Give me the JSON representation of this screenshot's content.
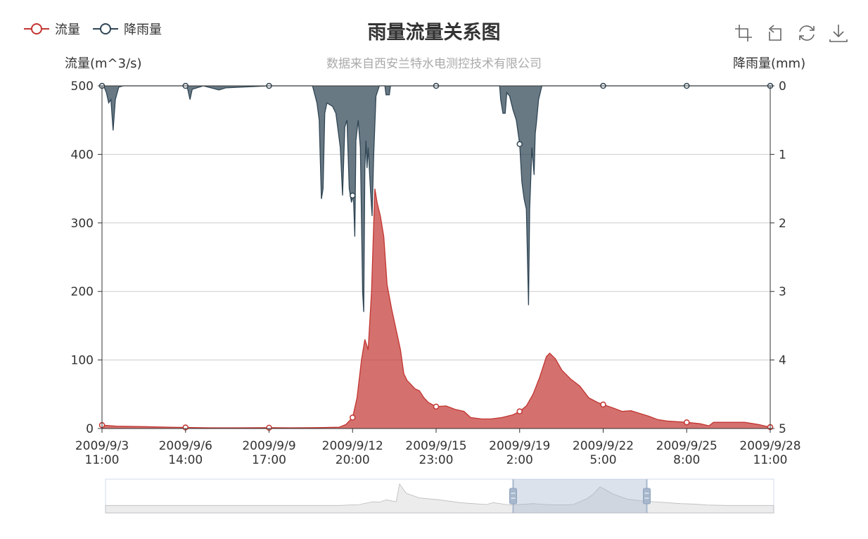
{
  "legend": [
    {
      "name": "流量",
      "color": "#c23531"
    },
    {
      "name": "降雨量",
      "color": "#2f4554"
    }
  ],
  "toolbox": [
    {
      "name": "area-zoom-icon"
    },
    {
      "name": "zoom-reset-icon"
    },
    {
      "name": "restore-icon"
    },
    {
      "name": "save-image-icon"
    }
  ],
  "chart_data": {
    "type": "area",
    "title": "雨量流量关系图",
    "subtitle": "数据来自西安兰特水电测控技术有限公司",
    "y_left": {
      "name": "流量(m^3/s)",
      "min": 0,
      "max": 500,
      "ticks": [
        0,
        100,
        200,
        300,
        400,
        500
      ]
    },
    "y_right": {
      "name": "降雨量(mm)",
      "min": 0,
      "max": 5,
      "inverse": true,
      "ticks": [
        0,
        1,
        2,
        3,
        4,
        5
      ]
    },
    "x": {
      "type": "time",
      "start": "2009-09-03 11:00",
      "end": "2009-09-28 11:00",
      "tick_labels": [
        [
          "2009/9/3",
          "11:00"
        ],
        [
          "2009/9/6",
          "14:00"
        ],
        [
          "2009/9/9",
          "17:00"
        ],
        [
          "2009/9/12",
          "20:00"
        ],
        [
          "2009/9/15",
          "23:00"
        ],
        [
          "2009/9/19",
          "2:00"
        ],
        [
          "2009/9/22",
          "5:00"
        ],
        [
          "2009/9/25",
          "8:00"
        ],
        [
          "2009/9/28",
          "11:00"
        ]
      ]
    },
    "grid": true,
    "series": [
      {
        "name": "流量",
        "axis": "left",
        "color": "#c23531",
        "fill": "rgba(194,53,49,0.7)",
        "points": [
          [
            "2009-09-03 11:00",
            5
          ],
          [
            "2009-09-04 00:00",
            3.5
          ],
          [
            "2009-09-05 00:00",
            2.8
          ],
          [
            "2009-09-06 00:00",
            2
          ],
          [
            "2009-09-06 14:00",
            1.5
          ],
          [
            "2009-09-07 12:00",
            1
          ],
          [
            "2009-09-08 12:00",
            1
          ],
          [
            "2009-09-09 17:00",
            1.2
          ],
          [
            "2009-09-10 12:00",
            1
          ],
          [
            "2009-09-11 12:00",
            1.2
          ],
          [
            "2009-09-12 08:00",
            2
          ],
          [
            "2009-09-12 14:00",
            6
          ],
          [
            "2009-09-12 20:00",
            16
          ],
          [
            "2009-09-13 00:00",
            45
          ],
          [
            "2009-09-13 04:00",
            100
          ],
          [
            "2009-09-13 07:00",
            130
          ],
          [
            "2009-09-13 10:00",
            115
          ],
          [
            "2009-09-13 13:00",
            200
          ],
          [
            "2009-09-13 16:00",
            350
          ],
          [
            "2009-09-13 18:00",
            330
          ],
          [
            "2009-09-13 21:00",
            310
          ],
          [
            "2009-09-14 00:00",
            280
          ],
          [
            "2009-09-14 03:00",
            210
          ],
          [
            "2009-09-14 07:00",
            175
          ],
          [
            "2009-09-14 11:00",
            145
          ],
          [
            "2009-09-14 15:00",
            115
          ],
          [
            "2009-09-14 18:00",
            80
          ],
          [
            "2009-09-14 21:00",
            70
          ],
          [
            "2009-09-15 00:00",
            65
          ],
          [
            "2009-09-15 04:00",
            58
          ],
          [
            "2009-09-15 08:00",
            55
          ],
          [
            "2009-09-15 12:00",
            45
          ],
          [
            "2009-09-15 16:00",
            38
          ],
          [
            "2009-09-15 23:00",
            32
          ],
          [
            "2009-09-16 08:00",
            33
          ],
          [
            "2009-09-16 16:00",
            28
          ],
          [
            "2009-09-17 00:00",
            25
          ],
          [
            "2009-09-17 06:00",
            16
          ],
          [
            "2009-09-17 16:00",
            14
          ],
          [
            "2009-09-18 00:00",
            14
          ],
          [
            "2009-09-18 10:00",
            16
          ],
          [
            "2009-09-18 20:00",
            20
          ],
          [
            "2009-09-19 02:00",
            25
          ],
          [
            "2009-09-19 08:00",
            33
          ],
          [
            "2009-09-19 14:00",
            50
          ],
          [
            "2009-09-19 20:00",
            75
          ],
          [
            "2009-09-20 02:00",
            105
          ],
          [
            "2009-09-20 05:00",
            110
          ],
          [
            "2009-09-20 10:00",
            102
          ],
          [
            "2009-09-20 16:00",
            85
          ],
          [
            "2009-09-21 00:00",
            72
          ],
          [
            "2009-09-21 08:00",
            62
          ],
          [
            "2009-09-21 16:00",
            45
          ],
          [
            "2009-09-22 00:00",
            38
          ],
          [
            "2009-09-22 05:00",
            35
          ],
          [
            "2009-09-22 14:00",
            30
          ],
          [
            "2009-09-22 22:00",
            25
          ],
          [
            "2009-09-23 06:00",
            26
          ],
          [
            "2009-09-23 14:00",
            22
          ],
          [
            "2009-09-23 22:00",
            18
          ],
          [
            "2009-09-24 06:00",
            13
          ],
          [
            "2009-09-24 14:00",
            11
          ],
          [
            "2009-09-25 08:00",
            9
          ],
          [
            "2009-09-25 20:00",
            7
          ],
          [
            "2009-09-26 04:00",
            4
          ],
          [
            "2009-09-26 08:00",
            9
          ],
          [
            "2009-09-27 00:00",
            9
          ],
          [
            "2009-09-27 12:00",
            9
          ],
          [
            "2009-09-28 00:00",
            6
          ],
          [
            "2009-09-28 11:00",
            2
          ]
        ]
      },
      {
        "name": "降雨量",
        "axis": "right",
        "color": "#2f4554",
        "fill": "rgba(47,69,84,0.72)",
        "points": [
          [
            "2009-09-03 11:00",
            0
          ],
          [
            "2009-09-03 13:00",
            0.02
          ],
          [
            "2009-09-03 15:00",
            0.1
          ],
          [
            "2009-09-03 17:00",
            0.25
          ],
          [
            "2009-09-03 19:00",
            0.2
          ],
          [
            "2009-09-03 21:00",
            0.65
          ],
          [
            "2009-09-03 23:00",
            0.2
          ],
          [
            "2009-09-04 02:00",
            0.02
          ],
          [
            "2009-09-04 06:00",
            0
          ],
          [
            "2009-09-05 08:00",
            0
          ],
          [
            "2009-09-06 14:00",
            0
          ],
          [
            "2009-09-06 16:00",
            0.05
          ],
          [
            "2009-09-06 18:00",
            0.2
          ],
          [
            "2009-09-06 20:00",
            0.05
          ],
          [
            "2009-09-07 06:00",
            0
          ],
          [
            "2009-09-07 20:00",
            0.06
          ],
          [
            "2009-09-08 02:00",
            0.03
          ],
          [
            "2009-09-09 17:00",
            0
          ],
          [
            "2009-09-11 08:00",
            0
          ],
          [
            "2009-09-11 12:00",
            0.25
          ],
          [
            "2009-09-11 14:00",
            0.5
          ],
          [
            "2009-09-11 16:00",
            1.65
          ],
          [
            "2009-09-11 17:30",
            1.5
          ],
          [
            "2009-09-11 19:00",
            0.4
          ],
          [
            "2009-09-11 21:00",
            0.25
          ],
          [
            "2009-09-12 02:00",
            0.3
          ],
          [
            "2009-09-12 05:00",
            0.4
          ],
          [
            "2009-09-12 09:00",
            0.9
          ],
          [
            "2009-09-12 11:00",
            1.6
          ],
          [
            "2009-09-12 13:00",
            0.6
          ],
          [
            "2009-09-12 15:00",
            0.5
          ],
          [
            "2009-09-12 17:00",
            1.5
          ],
          [
            "2009-09-12 19:00",
            1.7
          ],
          [
            "2009-09-12 20:00",
            1.6
          ],
          [
            "2009-09-12 21:00",
            1.7
          ],
          [
            "2009-09-12 22:00",
            2.2
          ],
          [
            "2009-09-12 23:00",
            0.8
          ],
          [
            "2009-09-13 01:00",
            0.5
          ],
          [
            "2009-09-13 03:00",
            0.9
          ],
          [
            "2009-09-13 05:00",
            3
          ],
          [
            "2009-09-13 06:00",
            3.3
          ],
          [
            "2009-09-13 07:00",
            1.2
          ],
          [
            "2009-09-13 08:00",
            0.8
          ],
          [
            "2009-09-13 09:00",
            1.2
          ],
          [
            "2009-09-13 10:00",
            0.9
          ],
          [
            "2009-09-13 12:00",
            1.5
          ],
          [
            "2009-09-13 13:30",
            1.9
          ],
          [
            "2009-09-13 15:00",
            1
          ],
          [
            "2009-09-13 17:00",
            0.15
          ],
          [
            "2009-09-13 20:00",
            0
          ],
          [
            "2009-09-14 01:00",
            0
          ],
          [
            "2009-09-14 02:00",
            0.13
          ],
          [
            "2009-09-14 05:00",
            0.13
          ],
          [
            "2009-09-14 06:00",
            0
          ],
          [
            "2009-09-15 23:00",
            0
          ],
          [
            "2009-09-18 08:00",
            0
          ],
          [
            "2009-09-18 09:00",
            0.2
          ],
          [
            "2009-09-18 11:00",
            0.4
          ],
          [
            "2009-09-18 13:00",
            0.4
          ],
          [
            "2009-09-18 14:30",
            0.1
          ],
          [
            "2009-09-18 17:00",
            0.15
          ],
          [
            "2009-09-18 20:00",
            0.35
          ],
          [
            "2009-09-18 23:00",
            0.5
          ],
          [
            "2009-09-19 02:00",
            0.85
          ],
          [
            "2009-09-19 04:00",
            1.4
          ],
          [
            "2009-09-19 06:00",
            1.65
          ],
          [
            "2009-09-19 08:00",
            1.8
          ],
          [
            "2009-09-19 10:00",
            3.2
          ],
          [
            "2009-09-19 11:00",
            1.8
          ],
          [
            "2009-09-19 13:00",
            0.9
          ],
          [
            "2009-09-19 15:00",
            1.3
          ],
          [
            "2009-09-19 16:00",
            0.7
          ],
          [
            "2009-09-19 17:00",
            0.55
          ],
          [
            "2009-09-19 19:00",
            0.2
          ],
          [
            "2009-09-19 22:00",
            0
          ],
          [
            "2009-09-22 05:00",
            0
          ],
          [
            "2009-09-25 08:00",
            0
          ],
          [
            "2009-09-28 11:00",
            0
          ]
        ]
      }
    ],
    "data_zoom": {
      "start_percent": 61,
      "end_percent": 81
    },
    "overview": {
      "points": [
        [
          0,
          2
        ],
        [
          15,
          2
        ],
        [
          35,
          2
        ],
        [
          38,
          3
        ],
        [
          40,
          6
        ],
        [
          41,
          5.5
        ],
        [
          42,
          8
        ],
        [
          43.5,
          6
        ],
        [
          44,
          25
        ],
        [
          45,
          15
        ],
        [
          47,
          10
        ],
        [
          50,
          8
        ],
        [
          53,
          5
        ],
        [
          55,
          4
        ],
        [
          57,
          3
        ],
        [
          58,
          5
        ],
        [
          60,
          3
        ],
        [
          61,
          2.5
        ],
        [
          64,
          4
        ],
        [
          66,
          3
        ],
        [
          68,
          2.5
        ],
        [
          70,
          3
        ],
        [
          72,
          9
        ],
        [
          73,
          14
        ],
        [
          74,
          22
        ],
        [
          75,
          18
        ],
        [
          76,
          14
        ],
        [
          78,
          9
        ],
        [
          80,
          7
        ],
        [
          82,
          6
        ],
        [
          84,
          5
        ],
        [
          86,
          4
        ],
        [
          88,
          3.5
        ],
        [
          90,
          2.5
        ],
        [
          93,
          2
        ],
        [
          100,
          2
        ]
      ]
    }
  }
}
